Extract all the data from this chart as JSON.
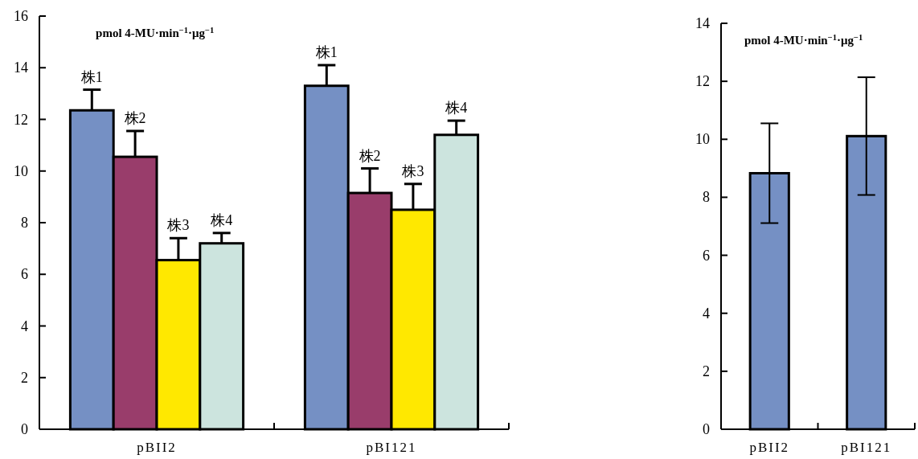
{
  "chart_data": [
    {
      "type": "bar",
      "categories": [
        "pBII2",
        "pBI121"
      ],
      "ylim": [
        0,
        16
      ],
      "yticks": [
        0,
        2,
        4,
        6,
        8,
        10,
        12,
        14,
        16
      ],
      "annotations": [
        "pmol 4-MU·min$^{−1}$·μg$^{−1}$"
      ],
      "series": [
        {
          "name": "株1",
          "color": "#7590c4",
          "values": [
            12.35,
            13.3
          ],
          "errors": [
            [
              12.35,
              13.15
            ],
            [
              13.3,
              14.1
            ]
          ]
        },
        {
          "name": "株2",
          "color": "#993d6b",
          "values": [
            10.55,
            9.15
          ],
          "errors": [
            [
              10.55,
              11.55
            ],
            [
              9.15,
              10.1
            ]
          ]
        },
        {
          "name": "株3",
          "color": "#ffe800",
          "values": [
            6.55,
            8.5
          ],
          "errors": [
            [
              6.55,
              7.4
            ],
            [
              8.5,
              9.5
            ]
          ]
        },
        {
          "name": "株4",
          "color": "#cce4de",
          "values": [
            7.2,
            11.4
          ],
          "errors": [
            [
              7.2,
              7.6
            ],
            [
              11.4,
              11.95
            ]
          ]
        }
      ]
    },
    {
      "type": "bar",
      "categories": [
        "pBII2",
        "pBI121"
      ],
      "ylim": [
        0,
        14
      ],
      "yticks": [
        0,
        2,
        4,
        6,
        8,
        10,
        12,
        14
      ],
      "annotations": [
        "pmol 4-MU·min$^{−1}$·μg$^{−1}$"
      ],
      "series": [
        {
          "color": "#7590c4",
          "values": [
            8.83,
            10.11
          ],
          "errors": [
            1.72,
            2.03
          ]
        }
      ]
    }
  ]
}
